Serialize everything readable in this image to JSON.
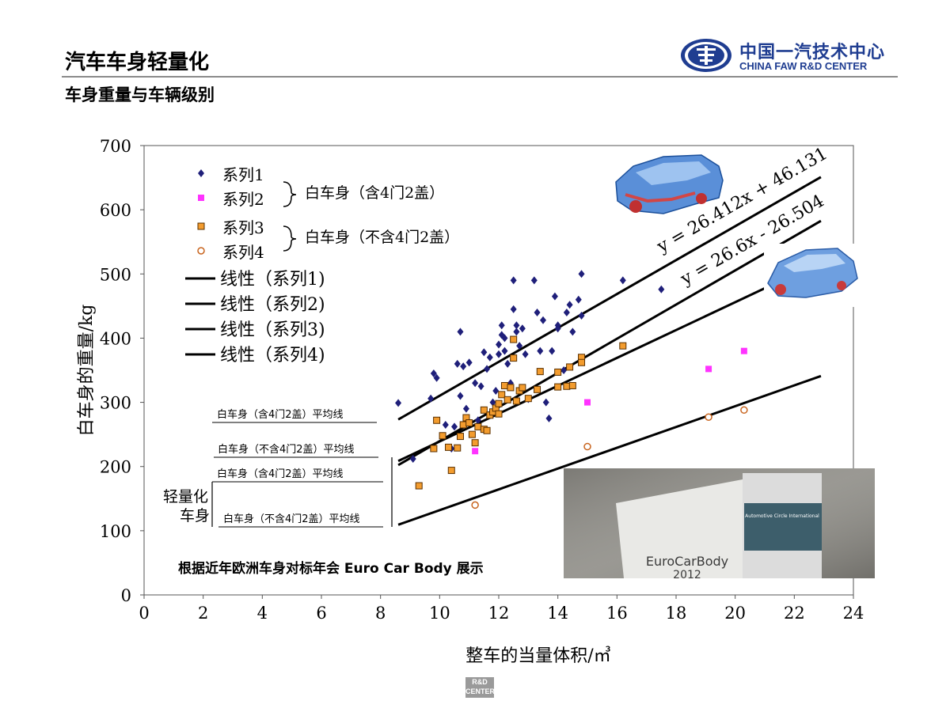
{
  "header": {
    "title": "汽车车身轻量化",
    "subtitle": "车身重量与车辆级别"
  },
  "logo": {
    "cn": "中国一汽技术中心",
    "en": "CHINA FAW R&D CENTER"
  },
  "footer_logo": "R&D CENTER",
  "colors": {
    "series1": "#1f1f7a",
    "series2": "#ff33ff",
    "series3": "#f39c2e",
    "series4": "#c8641e",
    "brand": "#1f3d91"
  },
  "chart_data": {
    "type": "scatter",
    "xlabel": "整车的当量体积/㎥",
    "ylabel": "白车身的重量/kg",
    "xlim": [
      0,
      24
    ],
    "ylim": [
      0,
      700
    ],
    "xticks": [
      0,
      2,
      4,
      6,
      8,
      10,
      12,
      14,
      16,
      18,
      20,
      22,
      24
    ],
    "yticks": [
      0,
      100,
      200,
      300,
      400,
      500,
      600,
      700
    ],
    "grid": false,
    "legend": {
      "placement": "top-left",
      "series": [
        "系列1",
        "系列2",
        "系列3",
        "系列4"
      ],
      "lines": [
        "线性（系列1)",
        "线性（系列2)",
        "线性（系列3)",
        "线性（系列4)"
      ],
      "group1": "白车身（含4门2盖）",
      "group2": "白车身（不含4门2盖）"
    },
    "series": [
      {
        "name": "系列1",
        "marker": "diamond",
        "points": [
          [
            8.6,
            299
          ],
          [
            9.1,
            212
          ],
          [
            9.7,
            306
          ],
          [
            9.8,
            345
          ],
          [
            9.9,
            338
          ],
          [
            10.2,
            265
          ],
          [
            10.4,
            228
          ],
          [
            10.5,
            262
          ],
          [
            10.6,
            360
          ],
          [
            10.7,
            410
          ],
          [
            10.7,
            310
          ],
          [
            10.8,
            356
          ],
          [
            10.9,
            290
          ],
          [
            11.0,
            362
          ],
          [
            11.2,
            330
          ],
          [
            11.3,
            272
          ],
          [
            11.4,
            325
          ],
          [
            11.5,
            378
          ],
          [
            11.6,
            352
          ],
          [
            11.7,
            370
          ],
          [
            11.8,
            300
          ],
          [
            11.9,
            318
          ],
          [
            12.0,
            375
          ],
          [
            12.0,
            390
          ],
          [
            12.1,
            405
          ],
          [
            12.1,
            420
          ],
          [
            12.2,
            400
          ],
          [
            12.2,
            380
          ],
          [
            12.3,
            360
          ],
          [
            12.4,
            330
          ],
          [
            12.5,
            445
          ],
          [
            12.5,
            490
          ],
          [
            12.6,
            420
          ],
          [
            12.6,
            410
          ],
          [
            12.7,
            388
          ],
          [
            12.8,
            415
          ],
          [
            12.9,
            375
          ],
          [
            13.0,
            305
          ],
          [
            13.2,
            490
          ],
          [
            13.3,
            440
          ],
          [
            13.4,
            380
          ],
          [
            13.5,
            428
          ],
          [
            13.6,
            300
          ],
          [
            13.7,
            275
          ],
          [
            13.8,
            380
          ],
          [
            13.9,
            465
          ],
          [
            14.0,
            420
          ],
          [
            14.0,
            415
          ],
          [
            14.2,
            350
          ],
          [
            14.3,
            440
          ],
          [
            14.4,
            452
          ],
          [
            14.5,
            410
          ],
          [
            14.7,
            460
          ],
          [
            14.8,
            500
          ],
          [
            14.8,
            435
          ],
          [
            16.2,
            490
          ],
          [
            17.5,
            476
          ]
        ],
        "fit_label": "y = 26.412x + 46.131",
        "fit": {
          "slope": 26.412,
          "intercept": 46.131,
          "x_range": [
            8.6,
            22.9
          ]
        }
      },
      {
        "name": "系列2",
        "marker": "square",
        "points": [
          [
            11.2,
            224
          ],
          [
            15.0,
            300
          ],
          [
            19.1,
            352
          ],
          [
            20.3,
            380
          ]
        ],
        "fit": {
          "slope": 21.7,
          "intercept": 22,
          "x_range": [
            8.6,
            22.9
          ]
        }
      },
      {
        "name": "系列3",
        "marker": "square-outline",
        "points": [
          [
            9.3,
            170
          ],
          [
            9.8,
            228
          ],
          [
            9.9,
            272
          ],
          [
            10.1,
            248
          ],
          [
            10.3,
            230
          ],
          [
            10.4,
            194
          ],
          [
            10.6,
            229
          ],
          [
            10.7,
            247
          ],
          [
            10.8,
            265
          ],
          [
            10.9,
            276
          ],
          [
            11.0,
            268
          ],
          [
            11.1,
            250
          ],
          [
            11.2,
            237
          ],
          [
            11.3,
            262
          ],
          [
            11.5,
            288
          ],
          [
            11.5,
            258
          ],
          [
            11.6,
            256
          ],
          [
            11.7,
            280
          ],
          [
            11.8,
            285
          ],
          [
            11.9,
            291
          ],
          [
            12.0,
            282
          ],
          [
            12.0,
            298
          ],
          [
            12.1,
            312
          ],
          [
            12.2,
            326
          ],
          [
            12.3,
            304
          ],
          [
            12.4,
            323
          ],
          [
            12.5,
            398
          ],
          [
            12.5,
            369
          ],
          [
            12.6,
            302
          ],
          [
            12.7,
            318
          ],
          [
            12.8,
            323
          ],
          [
            13.0,
            306
          ],
          [
            13.3,
            320
          ],
          [
            13.4,
            348
          ],
          [
            14.0,
            324
          ],
          [
            14.0,
            347
          ],
          [
            14.3,
            325
          ],
          [
            14.4,
            355
          ],
          [
            14.5,
            326
          ],
          [
            14.8,
            370
          ],
          [
            14.8,
            362
          ],
          [
            16.2,
            388
          ]
        ],
        "fit_label": "y = 26.6x - 26.504",
        "fit": {
          "slope": 26.6,
          "intercept": -26.504,
          "x_range": [
            8.6,
            22.9
          ]
        }
      },
      {
        "name": "系列4",
        "marker": "circle",
        "points": [
          [
            11.2,
            140
          ],
          [
            15.0,
            231
          ],
          [
            19.1,
            277
          ],
          [
            20.3,
            288
          ]
        ],
        "fit": {
          "slope": 16.2,
          "intercept": -30,
          "x_range": [
            8.6,
            22.9
          ]
        }
      }
    ],
    "annotations": {
      "avg_lines": [
        "白车身（含4门2盖）平均线",
        "白车身（不含4门2盖）平均线",
        "白车身（含4门2盖）平均线",
        "白车身（不含4门2盖）平均线"
      ],
      "lightweight": [
        "轻量化",
        "车身"
      ],
      "source_note": "根据近年欧洲车身对标年会 Euro Car Body 展示",
      "photo_text": [
        "Automotive Circle International",
        "EuroCarBody",
        "2012"
      ]
    }
  }
}
